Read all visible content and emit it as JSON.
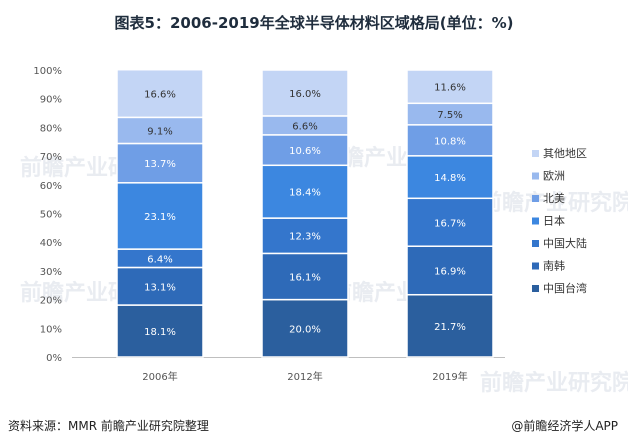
{
  "title": "图表5：2006-2019年全球半导体材料区域格局(单位：%)",
  "source": "资料来源：MMR 前瞻产业研究院整理",
  "brand": "@前瞻经济学人APP",
  "watermark": "前瞻产业研究院",
  "chart_data": {
    "type": "bar",
    "stacked": true,
    "categories": [
      "2006年",
      "2012年",
      "2019年"
    ],
    "ylim": [
      0,
      100
    ],
    "yticks": [
      "0%",
      "10%",
      "20%",
      "30%",
      "40%",
      "50%",
      "60%",
      "70%",
      "80%",
      "90%",
      "100%"
    ],
    "series": [
      {
        "name": "中国台湾",
        "values": [
          18.1,
          20.0,
          21.7
        ],
        "labels": [
          "18.1%",
          "20.0%",
          "21.7%"
        ],
        "color": "#2b5f9e"
      },
      {
        "name": "南韩",
        "values": [
          13.1,
          16.1,
          16.9
        ],
        "labels": [
          "13.1%",
          "16.1%",
          "16.9%"
        ],
        "color": "#2e6ab8"
      },
      {
        "name": "中国大陆",
        "values": [
          6.4,
          12.3,
          16.7
        ],
        "labels": [
          "6.4%",
          "12.3%",
          "16.7%"
        ],
        "color": "#3476cc"
      },
      {
        "name": "日本",
        "values": [
          23.1,
          18.4,
          14.8
        ],
        "labels": [
          "23.1%",
          "18.4%",
          "14.8%"
        ],
        "color": "#3c87e0"
      },
      {
        "name": "北美",
        "values": [
          13.7,
          10.6,
          10.8
        ],
        "labels": [
          "13.7%",
          "10.6%",
          "10.8%"
        ],
        "color": "#6f9ee6"
      },
      {
        "name": "欧洲",
        "values": [
          9.1,
          6.6,
          7.5
        ],
        "labels": [
          "9.1%",
          "6.6%",
          "7.5%"
        ],
        "color": "#99b9ee"
      },
      {
        "name": "其他地区",
        "values": [
          16.6,
          16.0,
          11.6
        ],
        "labels": [
          "16.6%",
          "16.0%",
          "11.6%"
        ],
        "color": "#c3d5f5"
      }
    ],
    "legend": "right"
  }
}
